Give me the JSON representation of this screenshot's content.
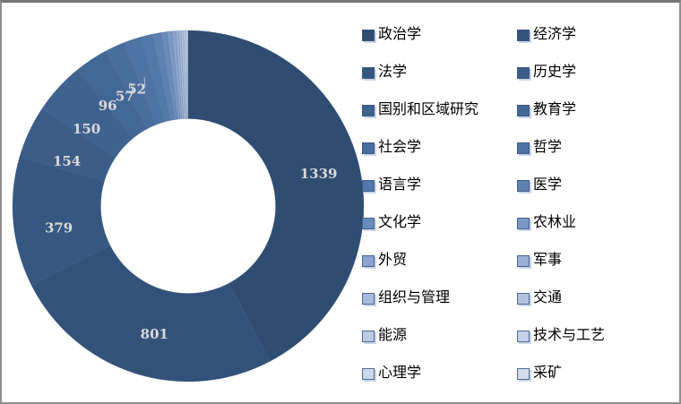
{
  "frame": {
    "background": "#FFFFFF",
    "border_color": "#8F8F8F"
  },
  "chart_data": {
    "type": "pie",
    "subtype": "doughnut",
    "title": "",
    "hole_ratio": 0.5,
    "start_angle_deg": 0,
    "direction": "clockwise",
    "legend_position": "right",
    "legend_columns": 2,
    "legend_text_color": "#000000",
    "data_label_color": "#D9D9D9",
    "labeled_slice_count": 8,
    "slices": [
      {
        "name": "政治学",
        "value": 1339,
        "label": "1339",
        "color": "#2E4D71",
        "estimated": false
      },
      {
        "name": "经济学",
        "value": 801,
        "label": "801",
        "color": "#32527A",
        "estimated": false
      },
      {
        "name": "法学",
        "value": 379,
        "label": "379",
        "color": "#365880",
        "estimated": false
      },
      {
        "name": "历史学",
        "value": 154,
        "label": "154",
        "color": "#3B5D88",
        "estimated": false
      },
      {
        "name": "国别和区域研究",
        "value": 150,
        "label": "150",
        "color": "#3F628F",
        "estimated": false
      },
      {
        "name": "教育学",
        "value": 96,
        "label": "96",
        "color": "#446896",
        "estimated": false
      },
      {
        "name": "社会学",
        "value": 57,
        "label": "57",
        "color": "#496D9D",
        "estimated": false
      },
      {
        "name": "哲学",
        "value": 52,
        "label": "52",
        "color": "#4E73A4",
        "estimated": false
      },
      {
        "name": "语言学",
        "value": 35,
        "label": "",
        "color": "#5379AA",
        "estimated": true
      },
      {
        "name": "医学",
        "value": 25,
        "label": "",
        "color": "#5D81B1",
        "estimated": true
      },
      {
        "name": "文化学",
        "value": 18,
        "label": "",
        "color": "#6B8BBA",
        "estimated": true
      },
      {
        "name": "农林业",
        "value": 14,
        "label": "",
        "color": "#7C98C5",
        "estimated": true
      },
      {
        "name": "外贸",
        "value": 11,
        "label": "",
        "color": "#8CA4CE",
        "estimated": true
      },
      {
        "name": "军事",
        "value": 9,
        "label": "",
        "color": "#9AAFD5",
        "estimated": true
      },
      {
        "name": "组织与管理",
        "value": 7,
        "label": "",
        "color": "#A7B9DB",
        "estimated": true
      },
      {
        "name": "交通",
        "value": 6,
        "label": "",
        "color": "#B2C2E0",
        "estimated": true
      },
      {
        "name": "能源",
        "value": 5,
        "label": "",
        "color": "#BCCAE4",
        "estimated": true
      },
      {
        "name": "技术与工艺",
        "value": 4,
        "label": "",
        "color": "#C5D1E8",
        "estimated": true
      },
      {
        "name": "心理学",
        "value": 3,
        "label": "",
        "color": "#CCD7EB",
        "estimated": true
      },
      {
        "name": "采矿",
        "value": 2,
        "label": "",
        "color": "#D3DDEE",
        "estimated": true
      }
    ]
  }
}
